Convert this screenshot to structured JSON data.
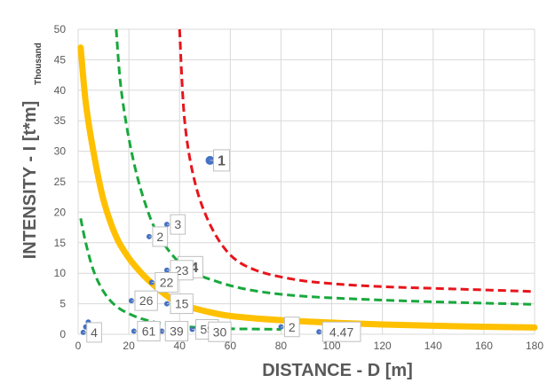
{
  "chart_data": {
    "type": "scatter",
    "title": "",
    "xlabel": "DISTANCE - D [m]",
    "ylabel": "INTENSITY - I [t*m]",
    "y_unit_label": "Thousand",
    "xlim": [
      0,
      180
    ],
    "ylim": [
      0,
      50
    ],
    "x_ticks": [
      "0",
      "20",
      "40",
      "60",
      "80",
      "100",
      "120",
      "140",
      "160",
      "180"
    ],
    "y_ticks": [
      "0",
      "5",
      "10",
      "15",
      "20",
      "25",
      "30",
      "35",
      "40",
      "45",
      "50"
    ],
    "grid": true,
    "legend": "none",
    "colors": {
      "point": "#4472c4",
      "red_curve": "#e8141b",
      "green_curve": "#18a83c",
      "orange_curve": "#ffc000",
      "grid": "#d9d9d9",
      "label_border": "#bfbfbf"
    },
    "curves": [
      {
        "color": "red",
        "style": "dashed",
        "points": [
          [
            40,
            50
          ],
          [
            42,
            35
          ],
          [
            46,
            25
          ],
          [
            52,
            18
          ],
          [
            60,
            13
          ],
          [
            70,
            10.5
          ],
          [
            85,
            9
          ],
          [
            100,
            8.3
          ],
          [
            120,
            7.8
          ],
          [
            150,
            7.4
          ],
          [
            180,
            7
          ]
        ]
      },
      {
        "color": "green",
        "style": "dashed",
        "points": [
          [
            15,
            50
          ],
          [
            17,
            40
          ],
          [
            21,
            30
          ],
          [
            26,
            22
          ],
          [
            32,
            16
          ],
          [
            42,
            11
          ],
          [
            55,
            8.6
          ],
          [
            70,
            7.1
          ],
          [
            90,
            6.2
          ],
          [
            120,
            5.6
          ],
          [
            150,
            5.2
          ],
          [
            180,
            4.9
          ]
        ]
      },
      {
        "color": "green",
        "style": "dashed",
        "points": [
          [
            1,
            19
          ],
          [
            3,
            15
          ],
          [
            6,
            10.5
          ],
          [
            10,
            7
          ],
          [
            15,
            4.6
          ],
          [
            22,
            3
          ],
          [
            30,
            2
          ],
          [
            40,
            1.35
          ],
          [
            55,
            0.95
          ],
          [
            70,
            0.85
          ],
          [
            80,
            0.8
          ]
        ]
      },
      {
        "color": "orange",
        "style": "solid",
        "points": [
          [
            1,
            47
          ],
          [
            3,
            38
          ],
          [
            6,
            30
          ],
          [
            10,
            22
          ],
          [
            15,
            16
          ],
          [
            20,
            12.5
          ],
          [
            25,
            10
          ],
          [
            30,
            8
          ],
          [
            35,
            6.3
          ],
          [
            40,
            5
          ],
          [
            50,
            3.8
          ],
          [
            60,
            3.0
          ],
          [
            80,
            2.3
          ],
          [
            100,
            1.9
          ],
          [
            120,
            1.6
          ],
          [
            150,
            1.3
          ],
          [
            180,
            1.1
          ]
        ]
      }
    ],
    "points": [
      {
        "x": 52,
        "y": 28.5,
        "label": "1",
        "r": 5
      },
      {
        "x": 38,
        "y": 11,
        "label": "24",
        "r": 5
      },
      {
        "x": 35,
        "y": 18,
        "label": "3",
        "r": 3
      },
      {
        "x": 28,
        "y": 16,
        "label": "2",
        "r": 3
      },
      {
        "x": 35,
        "y": 10.5,
        "label": "23",
        "r": 3
      },
      {
        "x": 29,
        "y": 8.5,
        "label": "22",
        "r": 3
      },
      {
        "x": 21,
        "y": 5.5,
        "label": "26",
        "r": 3
      },
      {
        "x": 35,
        "y": 5,
        "label": "15",
        "r": 3
      },
      {
        "x": 80,
        "y": 1.2,
        "label": "2",
        "r": 3
      },
      {
        "x": 4,
        "y": 2,
        "label": "",
        "r": 3
      },
      {
        "x": 3,
        "y": 1.2,
        "label": "",
        "r": 3
      },
      {
        "x": 2,
        "y": 0.3,
        "label": "4",
        "r": 3
      },
      {
        "x": 22,
        "y": 0.5,
        "label": "61",
        "r": 3
      },
      {
        "x": 33,
        "y": 0.5,
        "label": "39",
        "r": 3
      },
      {
        "x": 45,
        "y": 0.8,
        "label": "59",
        "r": 3
      },
      {
        "x": 50,
        "y": 0.4,
        "label": "30",
        "r": 3
      },
      {
        "x": 95,
        "y": 0.4,
        "label": "4.47",
        "r": 3
      }
    ]
  }
}
